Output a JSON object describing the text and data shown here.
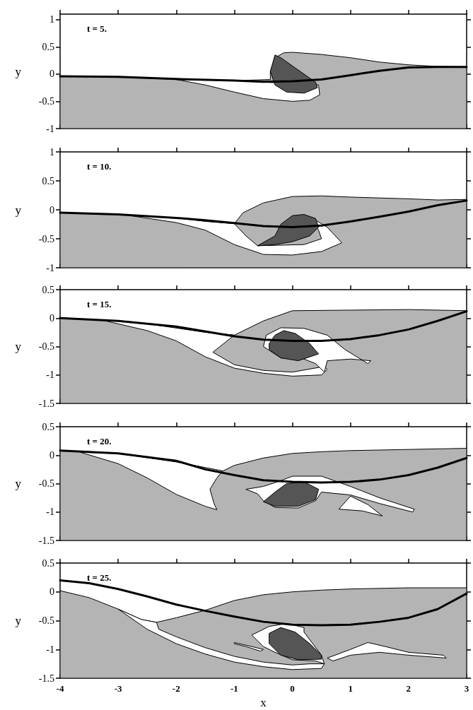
{
  "chart_data": [
    {
      "type": "area",
      "annotations": [
        "t = 5."
      ],
      "ylabel": "y",
      "xlim": [
        -4,
        3
      ],
      "xticks": [
        -4,
        -3,
        -2,
        -1,
        0,
        1,
        2,
        3
      ],
      "ylim": [
        -1,
        1.1
      ],
      "yticks": [
        -1,
        -0.5,
        0,
        0.5,
        1
      ],
      "tick_labels": "y",
      "grid": false,
      "series": [
        {
          "type": "area",
          "color": "#b4b4b4",
          "x": [
            -4,
            -3,
            -2,
            -1,
            -0.38,
            -0.38,
            -0.3,
            -0.15,
            0,
            0.5,
            1,
            1.5,
            2,
            2.5,
            3,
            3,
            -4,
            -4
          ],
          "values": [
            -0.04,
            -0.05,
            -0.1,
            -0.12,
            -0.1,
            0.05,
            0.3,
            0.39,
            0.4,
            0.36,
            0.3,
            0.22,
            0.17,
            0.14,
            0.13,
            -1,
            -1,
            -0.04
          ]
        },
        {
          "type": "area",
          "color": "#ffffff",
          "x": [
            -2,
            -1.5,
            -1,
            -0.5,
            0,
            0.3,
            0.47,
            0.45,
            -1,
            -2
          ],
          "values": [
            -0.1,
            -0.2,
            -0.33,
            -0.45,
            -0.5,
            -0.48,
            -0.38,
            -0.2,
            -0.12,
            -0.1
          ]
        },
        {
          "type": "area",
          "color": "#555555",
          "x": [
            -0.3,
            -0.38,
            -0.3,
            -0.1,
            0.2,
            0.43,
            0.4,
            0.2,
            0,
            -0.2,
            -0.3
          ],
          "values": [
            0.35,
            0.05,
            -0.2,
            -0.33,
            -0.35,
            -0.25,
            -0.15,
            0,
            0.15,
            0.3,
            0.35
          ]
        },
        {
          "type": "line",
          "color": "#000000",
          "x": [
            -4,
            -3,
            -2,
            -1,
            -0.5,
            0,
            0.5,
            1,
            1.5,
            2,
            2.5,
            3
          ],
          "values": [
            -0.04,
            -0.05,
            -0.09,
            -0.12,
            -0.14,
            -0.13,
            -0.1,
            -0.02,
            0.06,
            0.12,
            0.13,
            0.13
          ]
        }
      ]
    },
    {
      "type": "area",
      "annotations": [
        "t = 10."
      ],
      "ylabel": "y",
      "xlim": [
        -4,
        3
      ],
      "xticks": [
        -4,
        -3,
        -2,
        -1,
        0,
        1,
        2,
        3
      ],
      "ylim": [
        -1,
        1
      ],
      "yticks": [
        -1,
        -0.5,
        0,
        0.5,
        1
      ],
      "tick_labels": "y",
      "grid": false,
      "series": [
        {
          "type": "area",
          "color": "#b4b4b4",
          "x": [
            -4,
            -3,
            -2,
            -1.5,
            -1,
            -0.85,
            -0.5,
            0,
            0.5,
            1,
            2,
            2.5,
            3,
            3,
            -4,
            -4
          ],
          "values": [
            -0.05,
            -0.08,
            -0.14,
            -0.2,
            -0.24,
            -0.05,
            0.12,
            0.23,
            0.24,
            0.22,
            0.19,
            0.17,
            0.18,
            -1,
            -1,
            -0.05
          ]
        },
        {
          "type": "area",
          "color": "#ffffff",
          "x": [
            -2.8,
            -2,
            -1.5,
            -1,
            -0.5,
            0,
            0.5,
            0.85,
            0.6,
            0.3,
            0.45,
            0.5,
            0.2,
            -0.6,
            -0.8,
            -1,
            -1.5,
            -2,
            -2.8
          ],
          "values": [
            -0.1,
            -0.22,
            -0.35,
            -0.6,
            -0.77,
            -0.78,
            -0.72,
            -0.57,
            -0.3,
            -0.12,
            -0.35,
            -0.5,
            -0.6,
            -0.62,
            -0.45,
            -0.24,
            -0.2,
            -0.14,
            -0.1
          ]
        },
        {
          "type": "area",
          "color": "#555555",
          "x": [
            -0.6,
            -0.3,
            -0.2,
            0,
            0.2,
            0.4,
            0.45,
            0.3,
            0,
            -0.3,
            -0.6
          ],
          "values": [
            -0.62,
            -0.45,
            -0.25,
            -0.1,
            -0.08,
            -0.15,
            -0.3,
            -0.45,
            -0.55,
            -0.6,
            -0.62
          ]
        },
        {
          "type": "line",
          "color": "#000000",
          "x": [
            -4,
            -3,
            -2,
            -1.5,
            -1,
            -0.5,
            0,
            0.5,
            1,
            1.5,
            2,
            2.5,
            3
          ],
          "values": [
            -0.05,
            -0.08,
            -0.14,
            -0.18,
            -0.23,
            -0.28,
            -0.3,
            -0.27,
            -0.2,
            -0.12,
            -0.03,
            0.08,
            0.16
          ]
        }
      ]
    },
    {
      "type": "area",
      "annotations": [
        "t = 15."
      ],
      "ylabel": "y",
      "xlim": [
        -4,
        3
      ],
      "xticks": [
        -4,
        -3,
        -2,
        -1,
        0,
        1,
        2,
        3
      ],
      "ylim": [
        -1.5,
        0.5
      ],
      "yticks": [
        -1.5,
        -1,
        -0.5,
        0,
        0.5
      ],
      "tick_labels": "y",
      "grid": false,
      "series": [
        {
          "type": "area",
          "color": "#b4b4b4",
          "x": [
            -4,
            -3.3,
            -2.5,
            -1.5,
            -1,
            -0.7,
            -0.5,
            0,
            1,
            2,
            3,
            3,
            -4,
            -4
          ],
          "values": [
            0,
            -0.03,
            -0.1,
            -0.25,
            -0.3,
            -0.15,
            -0.05,
            0.13,
            0.14,
            0.15,
            0.13,
            -1.5,
            -1.5,
            0
          ]
        },
        {
          "type": "area",
          "color": "#ffffff",
          "x": [
            -3.3,
            -2.5,
            -2,
            -1.5,
            -1,
            -0.5,
            0,
            0.5,
            0.6,
            0.55,
            0,
            -0.5,
            -1,
            -1.37,
            -1,
            -1.5,
            -2.5,
            -3.3
          ],
          "values": [
            -0.03,
            -0.22,
            -0.4,
            -0.68,
            -0.88,
            -0.97,
            -1.02,
            -1,
            -0.9,
            -0.85,
            -0.95,
            -0.92,
            -0.82,
            -0.6,
            -0.3,
            -0.25,
            -0.1,
            -0.03
          ]
        },
        {
          "type": "area",
          "color": "#ffffff",
          "x": [
            -0.5,
            -0.45,
            -0.2,
            0.2,
            0.6,
            0.9,
            1.3,
            1.35,
            1,
            0.6,
            0.55,
            0.4,
            0.2,
            -0.2,
            -0.5
          ],
          "values": [
            -0.5,
            -0.3,
            -0.17,
            -0.18,
            -0.3,
            -0.55,
            -0.8,
            -0.75,
            -0.72,
            -0.75,
            -0.95,
            -0.8,
            -0.72,
            -0.7,
            -0.5
          ]
        },
        {
          "type": "area",
          "color": "#555555",
          "x": [
            -0.4,
            -0.3,
            -0.15,
            0.05,
            0.3,
            0.45,
            0.1,
            -0.2,
            -0.4,
            -0.4
          ],
          "values": [
            -0.45,
            -0.3,
            -0.22,
            -0.27,
            -0.45,
            -0.63,
            -0.75,
            -0.7,
            -0.55,
            -0.45
          ]
        },
        {
          "type": "line",
          "color": "#000000",
          "x": [
            -4,
            -3,
            -2,
            -1,
            -0.5,
            0,
            0.5,
            1,
            1.5,
            2,
            2.5,
            3
          ],
          "values": [
            0,
            -0.05,
            -0.15,
            -0.32,
            -0.38,
            -0.4,
            -0.4,
            -0.37,
            -0.3,
            -0.2,
            -0.05,
            0.12
          ]
        }
      ]
    },
    {
      "type": "area",
      "annotations": [
        "t = 20."
      ],
      "ylabel": "y",
      "xlim": [
        -4,
        3
      ],
      "xticks": [
        -4,
        -3,
        -2,
        -1,
        0,
        1,
        2,
        3
      ],
      "ylim": [
        -1.5,
        0.5
      ],
      "yticks": [
        -1.5,
        -1,
        -0.5,
        0,
        0.5
      ],
      "tick_labels": "y",
      "grid": false,
      "series": [
        {
          "type": "area",
          "color": "#b4b4b4",
          "x": [
            -4,
            -3,
            -2,
            -1.2,
            -1,
            -0.5,
            0,
            0.5,
            1,
            2,
            3,
            3,
            -4,
            -4
          ],
          "values": [
            0.08,
            0.03,
            -0.12,
            -0.28,
            -0.18,
            -0.05,
            0.03,
            0.06,
            0.08,
            0.1,
            0.12,
            -1.5,
            -1.5,
            0.08
          ]
        },
        {
          "type": "area",
          "color": "#ffffff",
          "x": [
            -3.65,
            -3,
            -2.5,
            -2,
            -1.5,
            -1.3,
            -1.35,
            -1.42,
            -1.3,
            -1.2,
            -2,
            -3,
            -3.65
          ],
          "values": [
            0.05,
            -0.15,
            -0.4,
            -0.69,
            -0.9,
            -0.96,
            -0.85,
            -0.6,
            -0.4,
            -0.28,
            -0.12,
            0.03,
            0.05
          ]
        },
        {
          "type": "area",
          "color": "#ffffff",
          "x": [
            -0.8,
            -0.5,
            -0.2,
            0,
            0.5,
            1,
            1.5,
            2.1,
            2.07,
            1.5,
            1,
            0.5,
            0.4,
            0.1,
            -0.3,
            -0.5,
            -0.6,
            -0.8
          ],
          "values": [
            -0.6,
            -0.55,
            -0.45,
            -0.37,
            -0.37,
            -0.55,
            -0.75,
            -0.95,
            -1,
            -0.85,
            -0.7,
            -0.65,
            -0.8,
            -0.93,
            -0.92,
            -0.8,
            -0.68,
            -0.6
          ]
        },
        {
          "type": "area",
          "color": "#ffffff",
          "x": [
            1,
            1.3,
            1.55,
            1.2,
            0.8,
            1
          ],
          "values": [
            -0.72,
            -0.87,
            -1.07,
            -0.98,
            -0.95,
            -0.72
          ]
        },
        {
          "type": "area",
          "color": "#555555",
          "x": [
            -0.5,
            -0.3,
            -0.1,
            0.2,
            0.45,
            0.4,
            0.1,
            -0.3,
            -0.5
          ],
          "values": [
            -0.82,
            -0.65,
            -0.5,
            -0.47,
            -0.6,
            -0.78,
            -0.9,
            -0.9,
            -0.82
          ]
        },
        {
          "type": "line",
          "color": "#000000",
          "x": [
            -4,
            -3,
            -2,
            -1.5,
            -1,
            -0.5,
            0,
            0.5,
            1,
            1.5,
            2,
            2.5,
            3
          ],
          "values": [
            0.08,
            0.03,
            -0.1,
            -0.25,
            -0.35,
            -0.44,
            -0.47,
            -0.48,
            -0.47,
            -0.43,
            -0.35,
            -0.22,
            -0.05
          ]
        }
      ]
    },
    {
      "type": "area",
      "annotations": [
        "t = 25."
      ],
      "xlabel": "x",
      "ylabel": "y",
      "xlim": [
        -4,
        3
      ],
      "xticks": [
        -4,
        -3,
        -2,
        -1,
        0,
        1,
        2,
        3
      ],
      "ylim": [
        -1.5,
        0.5
      ],
      "yticks": [
        -1.5,
        -1,
        -0.5,
        0,
        0.5
      ],
      "grid": false,
      "series": [
        {
          "type": "area",
          "color": "#b4b4b4",
          "x": [
            -4,
            -3.5,
            -3,
            -2.6,
            -2.34,
            -2,
            -1.5,
            -1,
            -0.5,
            0,
            0.5,
            1,
            2,
            3,
            3,
            -4,
            -4
          ],
          "values": [
            0.02,
            -0.1,
            -0.3,
            -0.48,
            -0.53,
            -0.45,
            -0.32,
            -0.15,
            -0.05,
            0,
            0.03,
            0.05,
            0.07,
            0.07,
            -1.5,
            -1.5,
            0.02
          ]
        },
        {
          "type": "area",
          "color": "#ffffff",
          "x": [
            -3,
            -2.5,
            -2,
            -1.5,
            -1,
            -0.5,
            0,
            0.5,
            0.55,
            0.3,
            0,
            -0.5,
            -1,
            -1.5,
            -2,
            -2.3,
            -2.34,
            -2.6,
            -3
          ],
          "values": [
            -0.3,
            -0.65,
            -0.9,
            -1.08,
            -1.22,
            -1.3,
            -1.35,
            -1.33,
            -1.25,
            -1.25,
            -1.27,
            -1.22,
            -1.12,
            -0.97,
            -0.78,
            -0.65,
            -0.53,
            -0.48,
            -0.3
          ]
        },
        {
          "type": "area",
          "color": "#ffffff",
          "x": [
            -0.7,
            -0.4,
            -0.1,
            0.2,
            0.2,
            0.5,
            0.55,
            0.4,
            0,
            -0.3,
            -0.5,
            -0.7
          ],
          "values": [
            -0.75,
            -0.6,
            -0.55,
            -0.62,
            -0.7,
            -1.1,
            -1.25,
            -1.2,
            -1.18,
            -1.05,
            -0.95,
            -0.75
          ]
        },
        {
          "type": "area",
          "color": "#ffffff",
          "x": [
            0.6,
            1,
            1.3,
            1.6,
            2,
            2.6,
            2.65,
            2,
            1.5,
            1,
            0.7,
            0.6
          ],
          "values": [
            -1.15,
            -1,
            -0.88,
            -0.95,
            -1.05,
            -1.1,
            -1.15,
            -1.1,
            -1.05,
            -1.1,
            -1.2,
            -1.15
          ]
        },
        {
          "type": "area",
          "color": "#ffffff",
          "x": [
            -1,
            -0.7,
            -0.5,
            -0.55,
            -0.8,
            -1,
            -1
          ],
          "values": [
            -0.88,
            -0.95,
            -1,
            -1.03,
            -0.95,
            -0.9,
            -0.88
          ]
        },
        {
          "type": "area",
          "color": "#555555",
          "x": [
            -0.4,
            -0.2,
            0.05,
            0.3,
            0.5,
            0.5,
            0.1,
            -0.2,
            -0.4,
            -0.4
          ],
          "values": [
            -0.72,
            -0.62,
            -0.7,
            -0.9,
            -1.1,
            -1.17,
            -1.18,
            -1.1,
            -0.9,
            -0.72
          ]
        },
        {
          "type": "line",
          "color": "#000000",
          "x": [
            -4,
            -3.5,
            -3,
            -2.5,
            -2,
            -1.5,
            -1,
            -0.5,
            0,
            0.5,
            1,
            1.5,
            2,
            2.5,
            3
          ],
          "values": [
            0.2,
            0.15,
            0.05,
            -0.08,
            -0.22,
            -0.33,
            -0.43,
            -0.52,
            -0.57,
            -0.58,
            -0.57,
            -0.52,
            -0.45,
            -0.3,
            -0.03
          ]
        }
      ]
    }
  ]
}
